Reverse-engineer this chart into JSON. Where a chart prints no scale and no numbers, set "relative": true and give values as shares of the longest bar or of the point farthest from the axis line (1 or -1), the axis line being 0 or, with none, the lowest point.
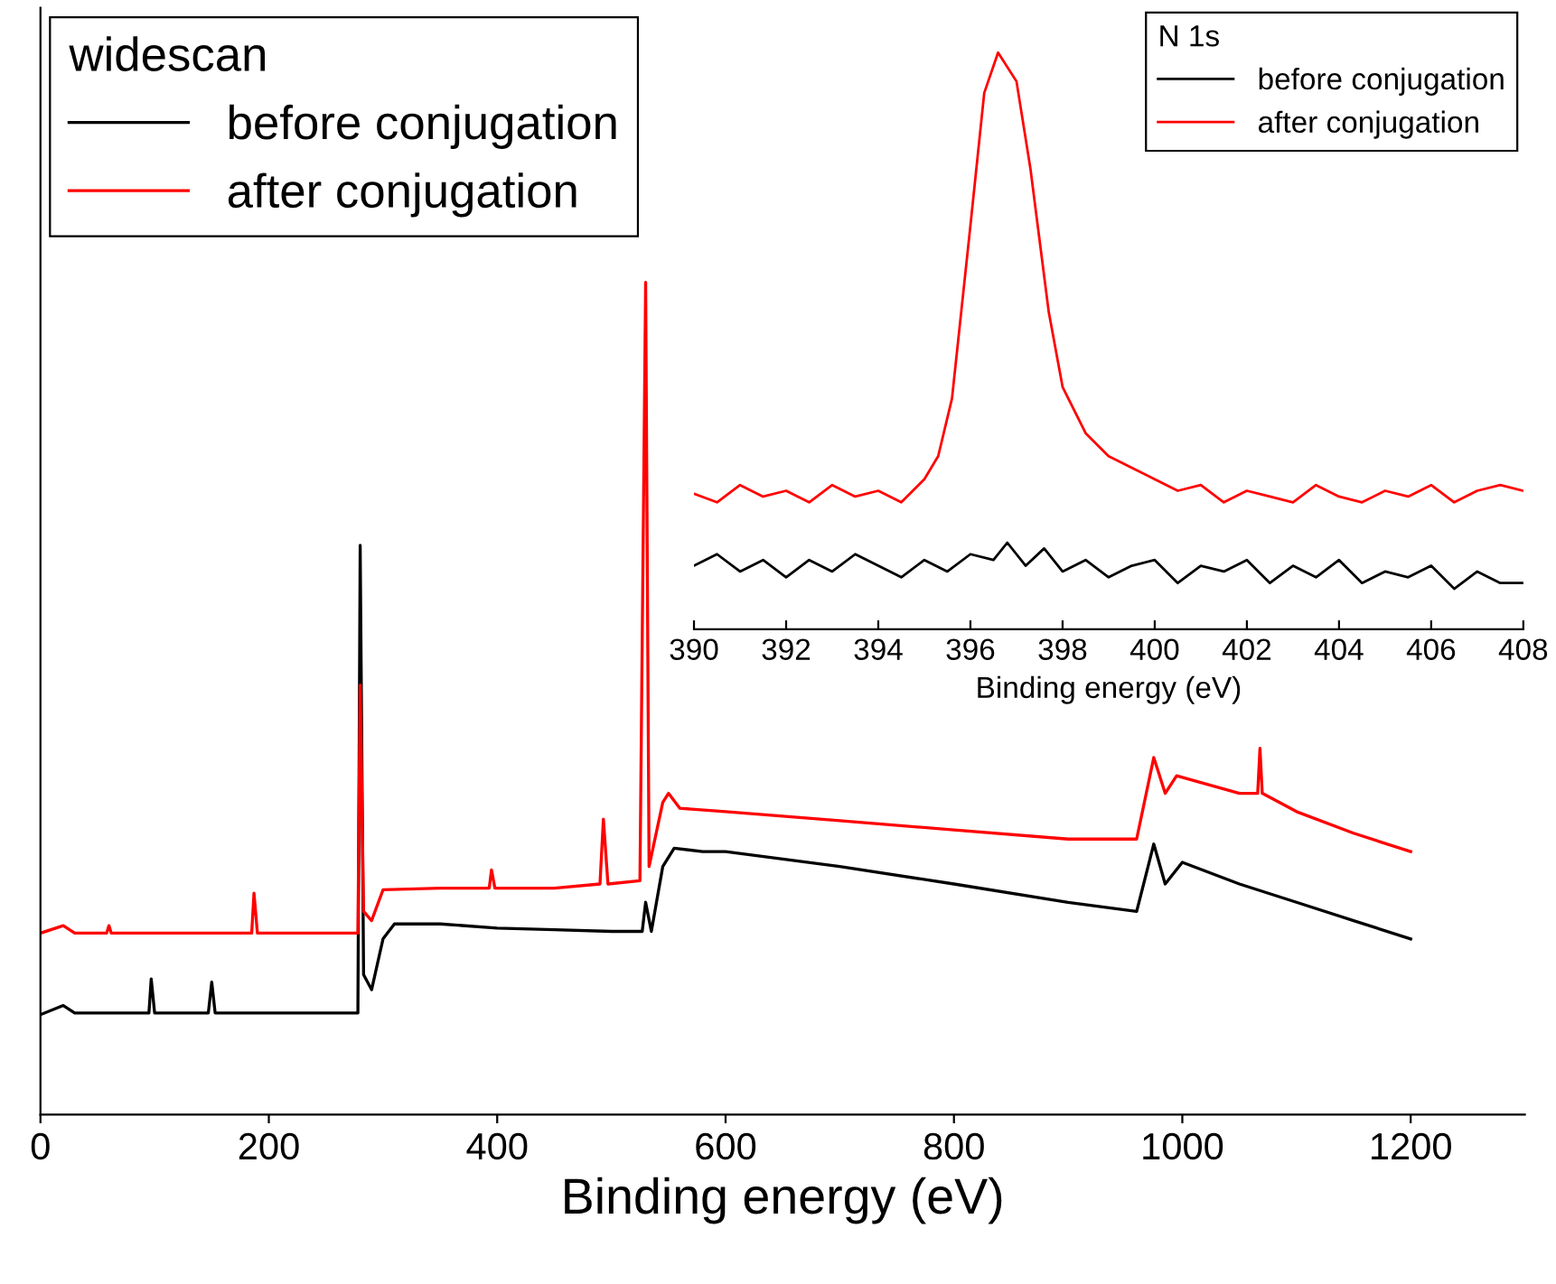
{
  "chart_data": [
    {
      "type": "line",
      "xlabel": "Binding energy (eV)",
      "legend_title": "widescan",
      "relative": true,
      "xlim": [
        0,
        1300
      ],
      "xticks": [
        0,
        200,
        400,
        600,
        800,
        1000,
        1200
      ],
      "tick_labels": "x",
      "legend": "top left",
      "grid": false,
      "marker": "none",
      "line_style": "solid",
      "series": [
        {
          "name": "before conjugation",
          "color": "#000000",
          "x": [
            0,
            20,
            30,
            95,
            97,
            100,
            147,
            150,
            153,
            270,
            278,
            280,
            283,
            290,
            300,
            310,
            350,
            400,
            450,
            500,
            527,
            530,
            535,
            545,
            555,
            580,
            600,
            700,
            800,
            900,
            960,
            975,
            985,
            1000,
            1050,
            1100,
            1150,
            1200
          ],
          "values": [
            0.12,
            0.131,
            0.122,
            0.122,
            0.163,
            0.122,
            0.122,
            0.159,
            0.122,
            0.122,
            0.122,
            0.684,
            0.168,
            0.15,
            0.211,
            0.229,
            0.229,
            0.224,
            0.222,
            0.22,
            0.22,
            0.255,
            0.22,
            0.298,
            0.32,
            0.316,
            0.316,
            0.298,
            0.277,
            0.255,
            0.244,
            0.325,
            0.277,
            0.303,
            0.277,
            0.255,
            0.233,
            0.211
          ]
        },
        {
          "name": "after conjugation",
          "color": "#ff0000",
          "x": [
            0,
            20,
            30,
            58,
            60,
            62,
            150,
            185,
            187,
            190,
            270,
            278,
            280,
            283,
            290,
            300,
            350,
            393,
            395,
            398,
            450,
            490,
            493,
            497,
            525,
            530,
            533,
            545,
            550,
            560,
            600,
            700,
            800,
            900,
            960,
            975,
            985,
            995,
            1050,
            1066,
            1068,
            1070,
            1100,
            1150,
            1200
          ],
          "values": [
            0.218,
            0.227,
            0.218,
            0.218,
            0.227,
            0.218,
            0.218,
            0.218,
            0.266,
            0.218,
            0.218,
            0.218,
            0.516,
            0.244,
            0.233,
            0.27,
            0.272,
            0.272,
            0.294,
            0.272,
            0.272,
            0.277,
            0.355,
            0.277,
            0.281,
            1.0,
            0.298,
            0.375,
            0.386,
            0.368,
            0.364,
            0.353,
            0.342,
            0.331,
            0.331,
            0.429,
            0.386,
            0.407,
            0.386,
            0.386,
            0.44,
            0.386,
            0.364,
            0.338,
            0.316
          ]
        }
      ]
    },
    {
      "type": "line",
      "xlabel": "Binding energy (eV)",
      "legend_title": "N 1s",
      "relative": true,
      "xlim": [
        390,
        408
      ],
      "xticks": [
        390,
        392,
        394,
        396,
        398,
        400,
        402,
        404,
        406,
        408
      ],
      "tick_labels": "x",
      "legend": "top right",
      "grid": false,
      "marker": "none",
      "line_style": "solid",
      "series": [
        {
          "name": "before conjugation",
          "color": "#000000",
          "x": [
            390,
            390.5,
            391,
            391.5,
            392,
            392.5,
            393,
            393.5,
            394,
            394.5,
            395,
            395.5,
            396,
            396.5,
            396.8,
            397.2,
            397.6,
            398,
            398.5,
            399,
            399.5,
            400,
            400.5,
            401,
            401.5,
            402,
            402.5,
            403,
            403.5,
            404,
            404.5,
            405,
            405.5,
            406,
            406.5,
            407,
            407.5,
            408
          ],
          "values": [
            0.11,
            0.13,
            0.1,
            0.12,
            0.09,
            0.12,
            0.1,
            0.13,
            0.11,
            0.09,
            0.12,
            0.1,
            0.13,
            0.12,
            0.15,
            0.11,
            0.14,
            0.1,
            0.12,
            0.09,
            0.11,
            0.12,
            0.08,
            0.11,
            0.1,
            0.12,
            0.08,
            0.11,
            0.09,
            0.12,
            0.08,
            0.1,
            0.09,
            0.11,
            0.07,
            0.1,
            0.08,
            0.08
          ]
        },
        {
          "name": "after conjugation",
          "color": "#ff0000",
          "x": [
            390,
            390.5,
            391,
            391.5,
            392,
            392.5,
            393,
            393.5,
            394,
            394.5,
            395,
            395.3,
            395.6,
            396,
            396.3,
            396.6,
            397,
            397.3,
            397.7,
            398,
            398.5,
            399,
            399.5,
            400,
            400.5,
            401,
            401.5,
            402,
            402.5,
            403,
            403.5,
            404,
            404.5,
            405,
            405.5,
            406,
            406.5,
            407,
            407.5,
            408
          ],
          "values": [
            0.235,
            0.22,
            0.25,
            0.23,
            0.24,
            0.22,
            0.25,
            0.23,
            0.24,
            0.22,
            0.26,
            0.3,
            0.4,
            0.7,
            0.93,
            1.0,
            0.95,
            0.8,
            0.55,
            0.42,
            0.34,
            0.3,
            0.28,
            0.26,
            0.24,
            0.25,
            0.22,
            0.24,
            0.23,
            0.22,
            0.25,
            0.23,
            0.22,
            0.24,
            0.23,
            0.25,
            0.22,
            0.24,
            0.25,
            0.24
          ]
        }
      ]
    }
  ]
}
